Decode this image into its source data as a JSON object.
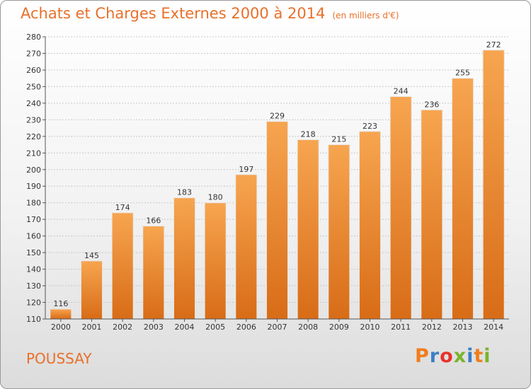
{
  "header": {
    "title": "Achats et Charges Externes 2000 à 2014",
    "unit": "(en milliers d'€)"
  },
  "footer": {
    "city": "POUSSAY",
    "brand": "Proxiti",
    "brand_colors": [
      "#f07d1e",
      "#3a7fc4",
      "#e8342c",
      "#79b42a",
      "#3a7fc4",
      "#f07d1e",
      "#79b42a"
    ]
  },
  "colors": {
    "bar_light": "#f7a550",
    "bar_dark": "#d86c17",
    "accent": "#e8702a"
  },
  "chart_data": {
    "type": "bar",
    "title": "Achats et Charges Externes 2000 à 2014",
    "categories": [
      "2000",
      "2001",
      "2002",
      "2003",
      "2004",
      "2005",
      "2006",
      "2007",
      "2008",
      "2009",
      "2010",
      "2011",
      "2012",
      "2013",
      "2014"
    ],
    "values": [
      116,
      145,
      174,
      166,
      183,
      180,
      197,
      229,
      218,
      215,
      223,
      244,
      236,
      255,
      272
    ],
    "ylim": [
      110,
      280
    ],
    "yticks": [
      110,
      120,
      130,
      140,
      150,
      160,
      170,
      180,
      190,
      200,
      210,
      220,
      230,
      240,
      250,
      260,
      270,
      280
    ],
    "grid": true,
    "legend": "none"
  }
}
